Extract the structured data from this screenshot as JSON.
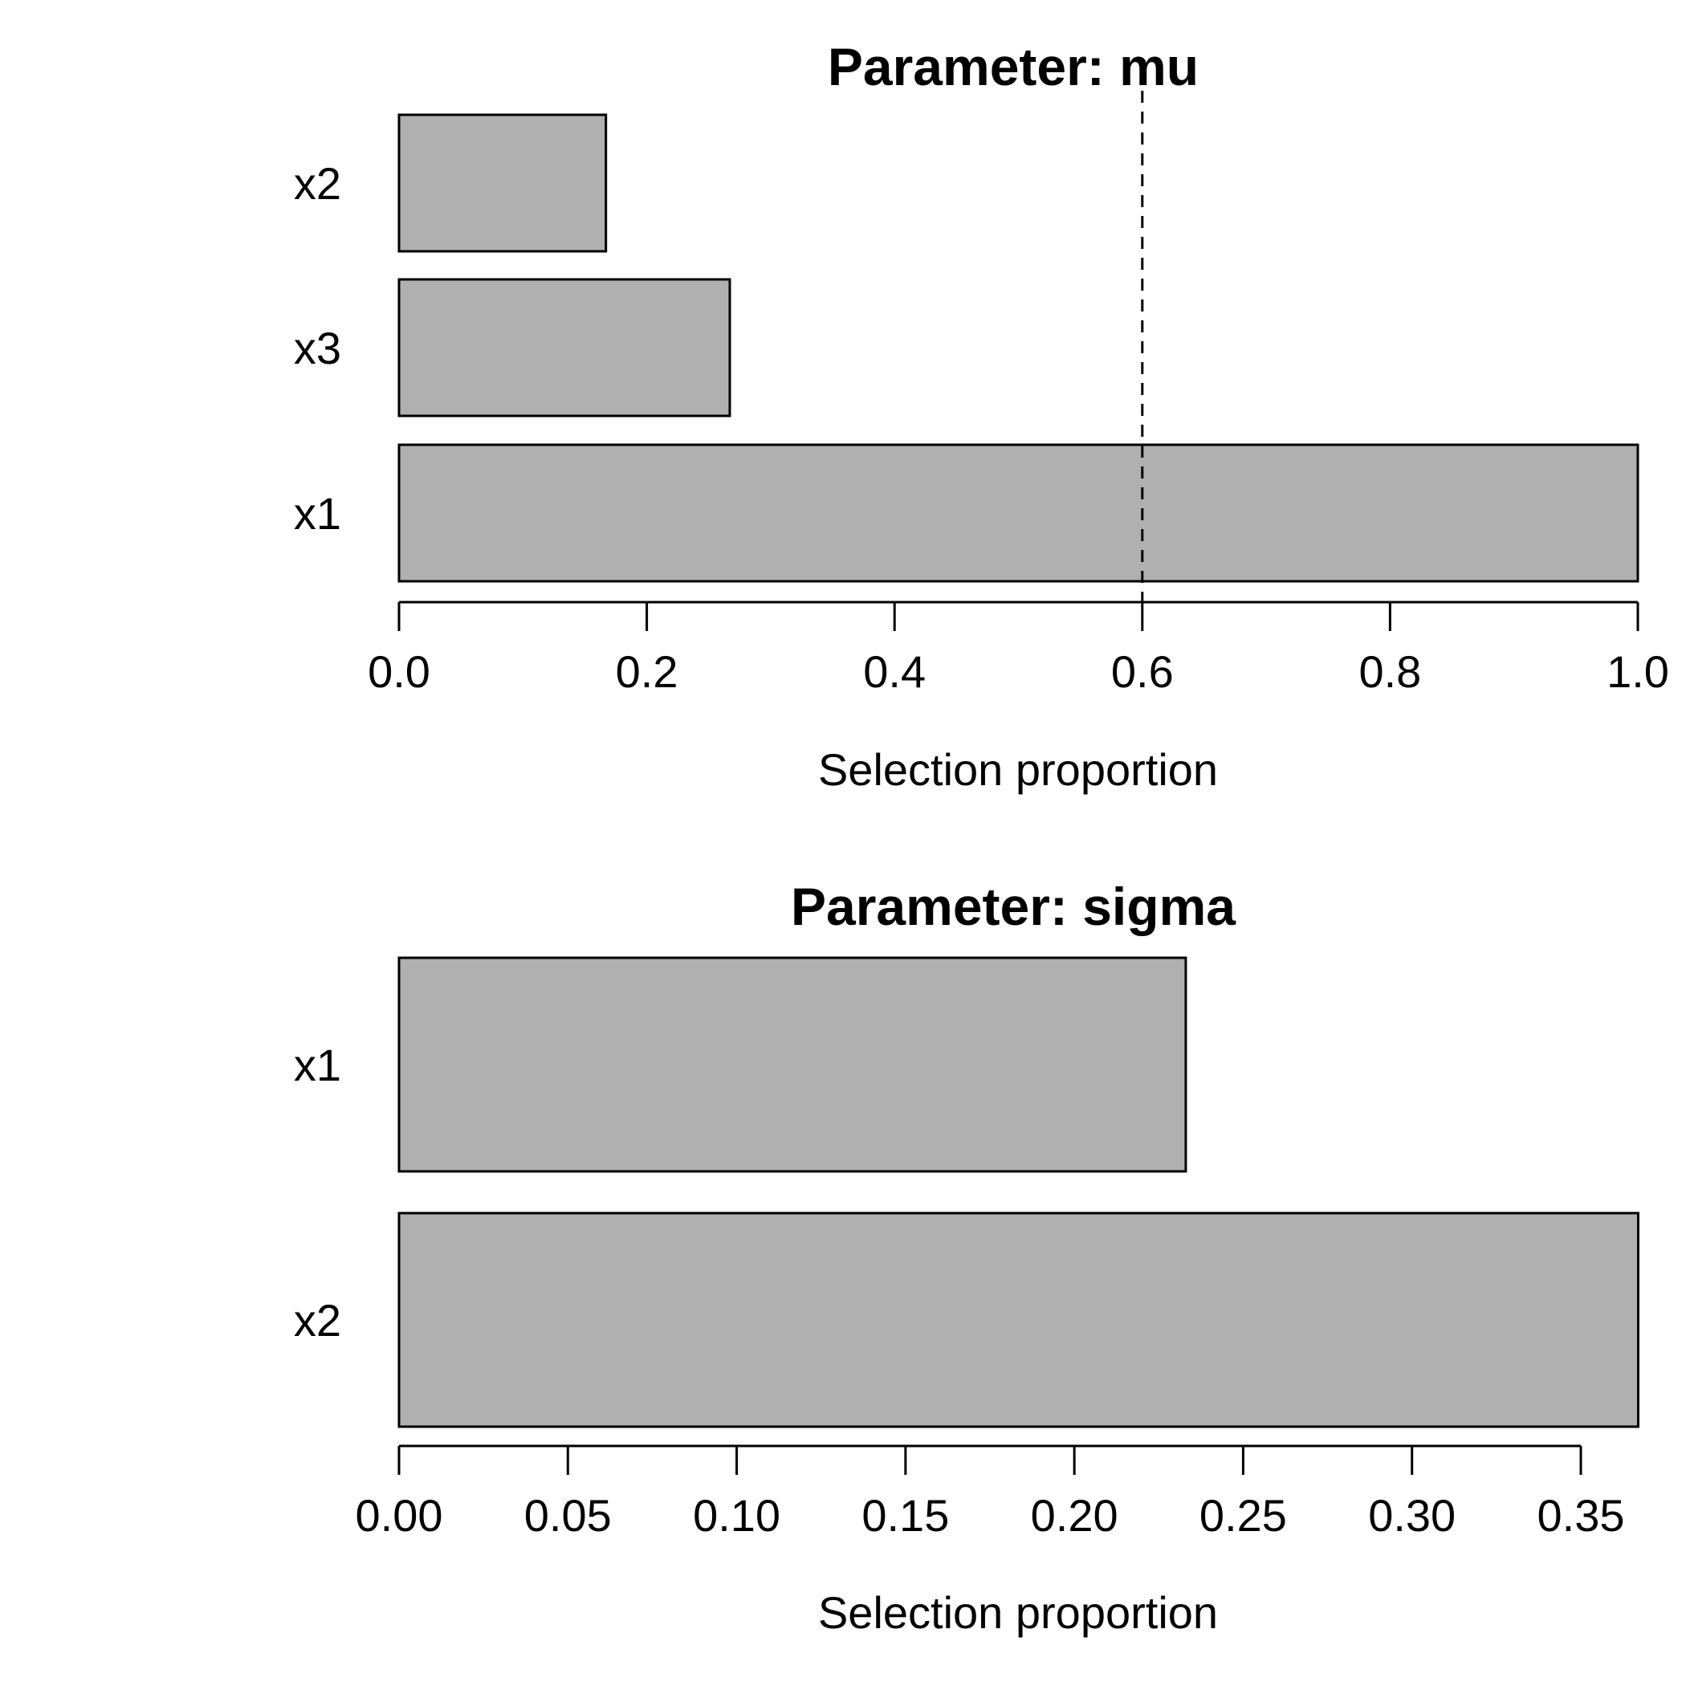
{
  "figure": {
    "background_color": "#ffffff",
    "bar_fill_color": "#b0b0b0",
    "bar_border_color": "#000000",
    "axis_color": "#000000",
    "reference_line_color": "#000000"
  },
  "chart_data": [
    {
      "type": "bar",
      "orientation": "horizontal",
      "title": "Parameter: mu",
      "xlabel": "Selection proportion",
      "categories": [
        "x2",
        "x3",
        "x1"
      ],
      "values": [
        0.167,
        0.267,
        1.0
      ],
      "xlim": [
        0,
        1.0
      ],
      "xtick_values": [
        0,
        0.2,
        0.4,
        0.6,
        0.8,
        1.0
      ],
      "xtick_labels": [
        "0.0",
        "0.2",
        "0.4",
        "0.6",
        "0.8",
        "1.0"
      ],
      "reference_line_x": 0.6,
      "reference_line_style": "dashed",
      "grid": false,
      "legend": null,
      "bar_color": "#b0b0b0",
      "bar_border_color": "#000000"
    },
    {
      "type": "bar",
      "orientation": "horizontal",
      "title": "Parameter: sigma",
      "xlabel": "Selection proportion",
      "categories": [
        "x1",
        "x2"
      ],
      "values": [
        0.233,
        0.367
      ],
      "xlim": [
        0,
        0.367
      ],
      "xtick_values": [
        0,
        0.05,
        0.1,
        0.15,
        0.2,
        0.25,
        0.3,
        0.35
      ],
      "xtick_labels": [
        "0.00",
        "0.05",
        "0.10",
        "0.15",
        "0.20",
        "0.25",
        "0.30",
        "0.35"
      ],
      "reference_line_x": null,
      "reference_line_style": null,
      "grid": false,
      "legend": null,
      "bar_color": "#b0b0b0",
      "bar_border_color": "#000000"
    }
  ]
}
